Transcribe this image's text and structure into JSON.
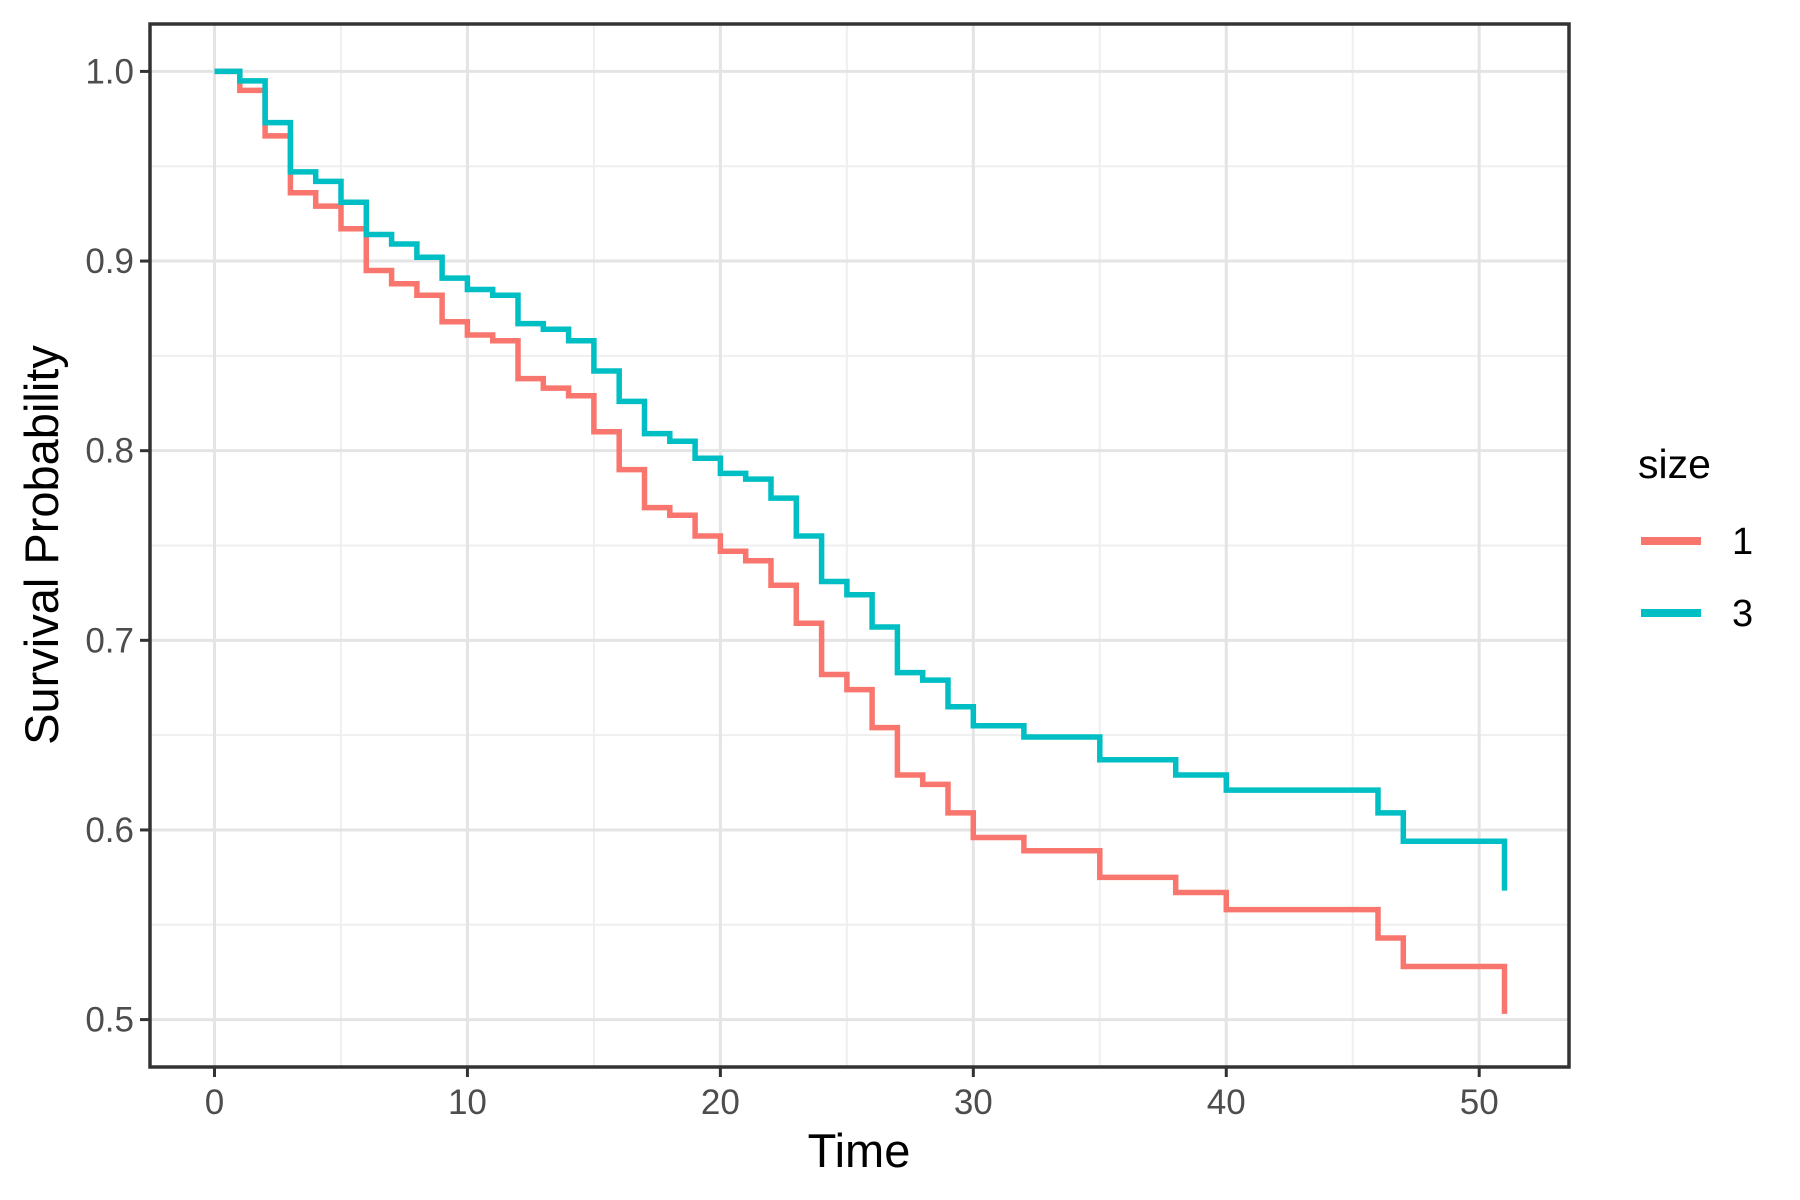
{
  "chart_data": {
    "type": "line",
    "subtype": "kaplan_meier_step",
    "title": "",
    "xlabel": "Time",
    "ylabel": "Survival Probability",
    "xlim": [
      -2.55,
      53.55
    ],
    "ylim": [
      0.475,
      1.025
    ],
    "x_major_ticks": [
      0,
      10,
      20,
      30,
      40,
      50
    ],
    "x_tick_labels": [
      "0",
      "10",
      "20",
      "30",
      "40",
      "50"
    ],
    "x_minor_ticks": [
      5,
      15,
      25,
      35,
      45
    ],
    "y_major_ticks": [
      0.5,
      0.6,
      0.7,
      0.8,
      0.9,
      1.0
    ],
    "y_tick_labels": [
      "0.5",
      "0.6",
      "0.7",
      "0.8",
      "0.9",
      "1.0"
    ],
    "y_minor_ticks": [
      0.55,
      0.65,
      0.75,
      0.85,
      0.95
    ],
    "grid": true,
    "legend_position": "right",
    "legend": {
      "title": "size",
      "entries": [
        {
          "label": "1",
          "color": "#F8766D"
        },
        {
          "label": "3",
          "color": "#00BFC4"
        }
      ]
    },
    "colors": {
      "series_1": "#F8766D",
      "series_3": "#00BFC4",
      "grid_major": "#e4e4e4",
      "grid_minor": "#efefef",
      "panel_border": "#333333",
      "tick_mark": "#333333",
      "tick_text": "#4d4d4d",
      "title_text": "#000000",
      "background": "#ffffff"
    },
    "series": [
      {
        "name": "1",
        "color": "#F8766D",
        "step": "hv",
        "points": [
          [
            0,
            1.0
          ],
          [
            1,
            0.99
          ],
          [
            2,
            0.966
          ],
          [
            3,
            0.936
          ],
          [
            4,
            0.929
          ],
          [
            5,
            0.917
          ],
          [
            6,
            0.895
          ],
          [
            7,
            0.888
          ],
          [
            8,
            0.882
          ],
          [
            9,
            0.868
          ],
          [
            10,
            0.861
          ],
          [
            11,
            0.858
          ],
          [
            12,
            0.838
          ],
          [
            13,
            0.833
          ],
          [
            14,
            0.829
          ],
          [
            15,
            0.81
          ],
          [
            16,
            0.79
          ],
          [
            17,
            0.77
          ],
          [
            18,
            0.766
          ],
          [
            19,
            0.755
          ],
          [
            20,
            0.747
          ],
          [
            21,
            0.742
          ],
          [
            22,
            0.729
          ],
          [
            23,
            0.709
          ],
          [
            24,
            0.682
          ],
          [
            25,
            0.674
          ],
          [
            26,
            0.654
          ],
          [
            27,
            0.629
          ],
          [
            28,
            0.624
          ],
          [
            29,
            0.609
          ],
          [
            30,
            0.596
          ],
          [
            32,
            0.589
          ],
          [
            35,
            0.575
          ],
          [
            38,
            0.567
          ],
          [
            40,
            0.558
          ],
          [
            46,
            0.543
          ],
          [
            47,
            0.528
          ],
          [
            51,
            0.503
          ]
        ]
      },
      {
        "name": "3",
        "color": "#00BFC4",
        "step": "hv",
        "points": [
          [
            0,
            1.0
          ],
          [
            1,
            0.995
          ],
          [
            2,
            0.973
          ],
          [
            3,
            0.947
          ],
          [
            4,
            0.942
          ],
          [
            5,
            0.931
          ],
          [
            6,
            0.914
          ],
          [
            7,
            0.909
          ],
          [
            8,
            0.902
          ],
          [
            9,
            0.891
          ],
          [
            10,
            0.885
          ],
          [
            11,
            0.882
          ],
          [
            12,
            0.867
          ],
          [
            13,
            0.864
          ],
          [
            14,
            0.858
          ],
          [
            15,
            0.842
          ],
          [
            16,
            0.826
          ],
          [
            17,
            0.809
          ],
          [
            18,
            0.805
          ],
          [
            19,
            0.796
          ],
          [
            20,
            0.788
          ],
          [
            21,
            0.785
          ],
          [
            22,
            0.775
          ],
          [
            23,
            0.755
          ],
          [
            24,
            0.731
          ],
          [
            25,
            0.724
          ],
          [
            26,
            0.707
          ],
          [
            27,
            0.683
          ],
          [
            28,
            0.679
          ],
          [
            29,
            0.665
          ],
          [
            30,
            0.655
          ],
          [
            32,
            0.649
          ],
          [
            35,
            0.637
          ],
          [
            38,
            0.629
          ],
          [
            40,
            0.621
          ],
          [
            46,
            0.609
          ],
          [
            47,
            0.594
          ],
          [
            51,
            0.568
          ]
        ]
      }
    ]
  }
}
